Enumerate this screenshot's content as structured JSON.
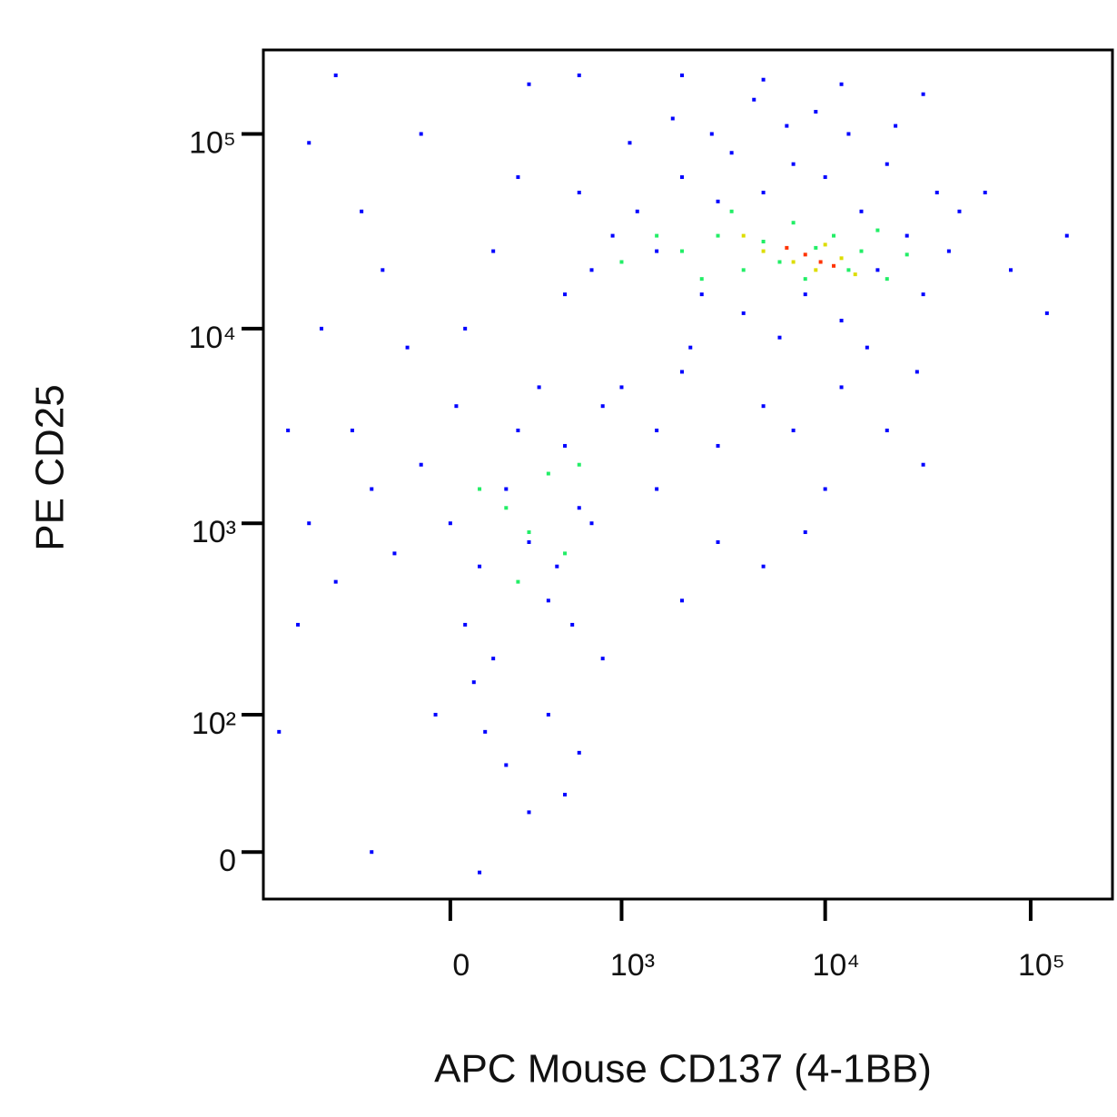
{
  "chart_data": {
    "type": "scatter",
    "x_label": "APC Mouse CD137 (4-1BB)",
    "y_label": "PE CD25",
    "xscale": "logicle",
    "yscale": "logicle",
    "xlim": [
      -1200,
      250000
    ],
    "ylim": [
      -24,
      270000
    ],
    "xticks": [
      0,
      {
        "value": 1000,
        "label": "10³"
      },
      {
        "value": 10000,
        "label": "10⁴"
      },
      {
        "value": 100000,
        "label": "10⁵"
      }
    ],
    "yticks": [
      0,
      {
        "value": 100,
        "label": "10²"
      },
      {
        "value": 1000,
        "label": "10³"
      },
      {
        "value": 10000,
        "label": "10⁴"
      },
      {
        "value": 100000,
        "label": "10⁵"
      }
    ],
    "series": [
      {
        "color": "#0000ff",
        "x": [
          1200,
          1500,
          2000,
          2500,
          3000,
          3500,
          4000,
          5000,
          6000,
          7000,
          8000,
          10000,
          12000,
          15000,
          18000,
          20000,
          25000,
          30000,
          35000,
          40000,
          900,
          700,
          600,
          500,
          1100,
          1800,
          2200,
          2800,
          4500,
          6500,
          9000,
          13000,
          16000,
          22000,
          28000,
          45000,
          60000,
          80000,
          150000,
          120000,
          1000,
          1500,
          2000,
          800,
          3000,
          5000,
          7000,
          12000,
          20000,
          30000,
          10000,
          8000,
          5000,
          3000,
          2000,
          1500,
          0,
          100,
          -100,
          200,
          300,
          400,
          500,
          600,
          50,
          -200,
          -300,
          150,
          250,
          350,
          450,
          550,
          700,
          -400,
          -500,
          80,
          120,
          -50,
          20,
          -150,
          -250,
          -350,
          -600,
          -700,
          -800,
          -900,
          -1000,
          200,
          300,
          500,
          -300,
          100,
          600,
          800,
          400,
          50,
          150,
          250,
          -100,
          -500,
          300,
          2000,
          5000,
          12000,
          30000,
          600,
          -700
        ],
        "y": [
          40000,
          25000,
          60000,
          15000,
          45000,
          80000,
          12000,
          50000,
          9000,
          70000,
          15000,
          60000,
          11000,
          40000,
          20000,
          70000,
          30000,
          15000,
          50000,
          25000,
          30000,
          20000,
          50000,
          15000,
          90000,
          120000,
          8000,
          100000,
          150000,
          110000,
          130000,
          100000,
          8000,
          110000,
          6000,
          40000,
          50000,
          20000,
          30000,
          12000,
          5000,
          3000,
          6000,
          4000,
          2500,
          4000,
          3000,
          5000,
          3000,
          2000,
          1500,
          900,
          600,
          800,
          400,
          1500,
          1000,
          600,
          2000,
          1500,
          800,
          400,
          2500,
          1200,
          300,
          700,
          1500,
          200,
          3000,
          5000,
          600,
          300,
          1000,
          3000,
          500,
          150,
          80,
          100,
          4000,
          8000,
          20000,
          40000,
          10000,
          1000,
          300,
          3000,
          80,
          50,
          20,
          30,
          0,
          -10,
          60,
          200,
          100,
          10000,
          25000,
          60000,
          100000,
          200000,
          180000,
          200000,
          190000,
          180000,
          160000,
          200000,
          90000
        ]
      },
      {
        "color": "#22ee66",
        "x": [
          2000,
          3000,
          4000,
          5000,
          6000,
          7000,
          8000,
          9000,
          11000,
          13000,
          15000,
          18000,
          1500,
          1000,
          2500,
          3500,
          20000,
          25000,
          200,
          300,
          400,
          500,
          100,
          250,
          600
        ],
        "y": [
          25000,
          30000,
          20000,
          28000,
          22000,
          35000,
          18000,
          26000,
          30000,
          20000,
          25000,
          32000,
          30000,
          22000,
          18000,
          40000,
          18000,
          24000,
          1200,
          900,
          1800,
          700,
          1500,
          500,
          2000
        ]
      },
      {
        "color": "#dddd00",
        "x": [
          5000,
          7000,
          9000,
          10000,
          12000,
          4000,
          14000
        ],
        "y": [
          25000,
          22000,
          20000,
          27000,
          23000,
          30000,
          19000
        ]
      },
      {
        "color": "#ff3300",
        "x": [
          8000,
          9500,
          11000,
          6500
        ],
        "y": [
          24000,
          22000,
          21000,
          26000
        ]
      }
    ]
  }
}
